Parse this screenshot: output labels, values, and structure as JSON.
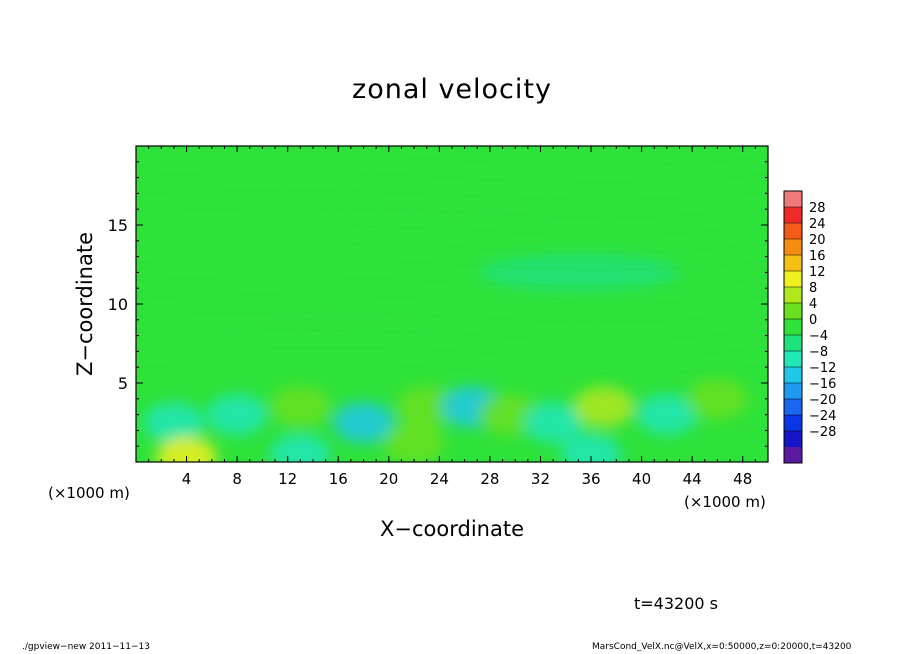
{
  "chart_data": {
    "type": "heatmap",
    "title": "zonal velocity",
    "xlabel": "X−coordinate",
    "ylabel": "Z−coordinate",
    "x_unit": "(×1000 m)",
    "x_unit_right": "(×1000 m)",
    "xlim": [
      0,
      50
    ],
    "ylim": [
      0,
      20
    ],
    "x_ticks": [
      4,
      8,
      12,
      16,
      20,
      24,
      28,
      32,
      36,
      40,
      44,
      48
    ],
    "y_ticks": [
      5,
      10,
      15
    ],
    "grid": false,
    "colorbar": {
      "levels": [
        -30,
        -28,
        -24,
        -20,
        -16,
        -12,
        -8,
        -4,
        0,
        4,
        8,
        12,
        16,
        20,
        24,
        28,
        30
      ],
      "tick_labels": [
        "28",
        "24",
        "20",
        "16",
        "12",
        "8",
        "4",
        "0",
        "−4",
        "−8",
        "−12",
        "−16",
        "−20",
        "−24",
        "−28"
      ],
      "colors": [
        "#5a1aa0",
        "#1616c8",
        "#0b36e6",
        "#1a66f0",
        "#1f9af0",
        "#20c8e8",
        "#20e6b8",
        "#1ee27a",
        "#2ee23a",
        "#6ae01c",
        "#b0e81c",
        "#f0f020",
        "#f5c016",
        "#f58e10",
        "#f55a18",
        "#f02a2a",
        "#f07a7a"
      ]
    },
    "field_description": "Mostly near zero (green) with weak perturbations; stronger cells of about −10 and +8 m/s near the ground (z < 5 km).",
    "cells": [
      {
        "x": 3,
        "z": 2.5,
        "value": -8
      },
      {
        "x": 8,
        "z": 3.0,
        "value": -6
      },
      {
        "x": 13,
        "z": 3.5,
        "value": 7
      },
      {
        "x": 18,
        "z": 2.5,
        "value": -9
      },
      {
        "x": 23,
        "z": 3.5,
        "value": 5
      },
      {
        "x": 26.5,
        "z": 3.5,
        "value": -10
      },
      {
        "x": 29.5,
        "z": 3.0,
        "value": 6
      },
      {
        "x": 33,
        "z": 2.5,
        "value": -7
      },
      {
        "x": 37,
        "z": 3.5,
        "value": 10
      },
      {
        "x": 42,
        "z": 3.0,
        "value": -5
      },
      {
        "x": 46,
        "z": 4.0,
        "value": 5
      },
      {
        "x": 4,
        "z": 0.3,
        "value": 12
      },
      {
        "x": 13,
        "z": 0.5,
        "value": -7
      },
      {
        "x": 36,
        "z": 0.5,
        "value": -7
      },
      {
        "x": 22,
        "z": 1.2,
        "value": 5
      },
      {
        "x": 15,
        "z": 9,
        "value": 3
      },
      {
        "x": 35,
        "z": 12,
        "value": -3
      },
      {
        "x": 25,
        "z": 16,
        "value": 2
      }
    ]
  },
  "time_label": "t=43200 s",
  "footer_left": "./gpview−new   2011−11−13",
  "footer_right": "MarsCond_VelX.nc@VelX,x=0:50000,z=0:20000,t=43200"
}
